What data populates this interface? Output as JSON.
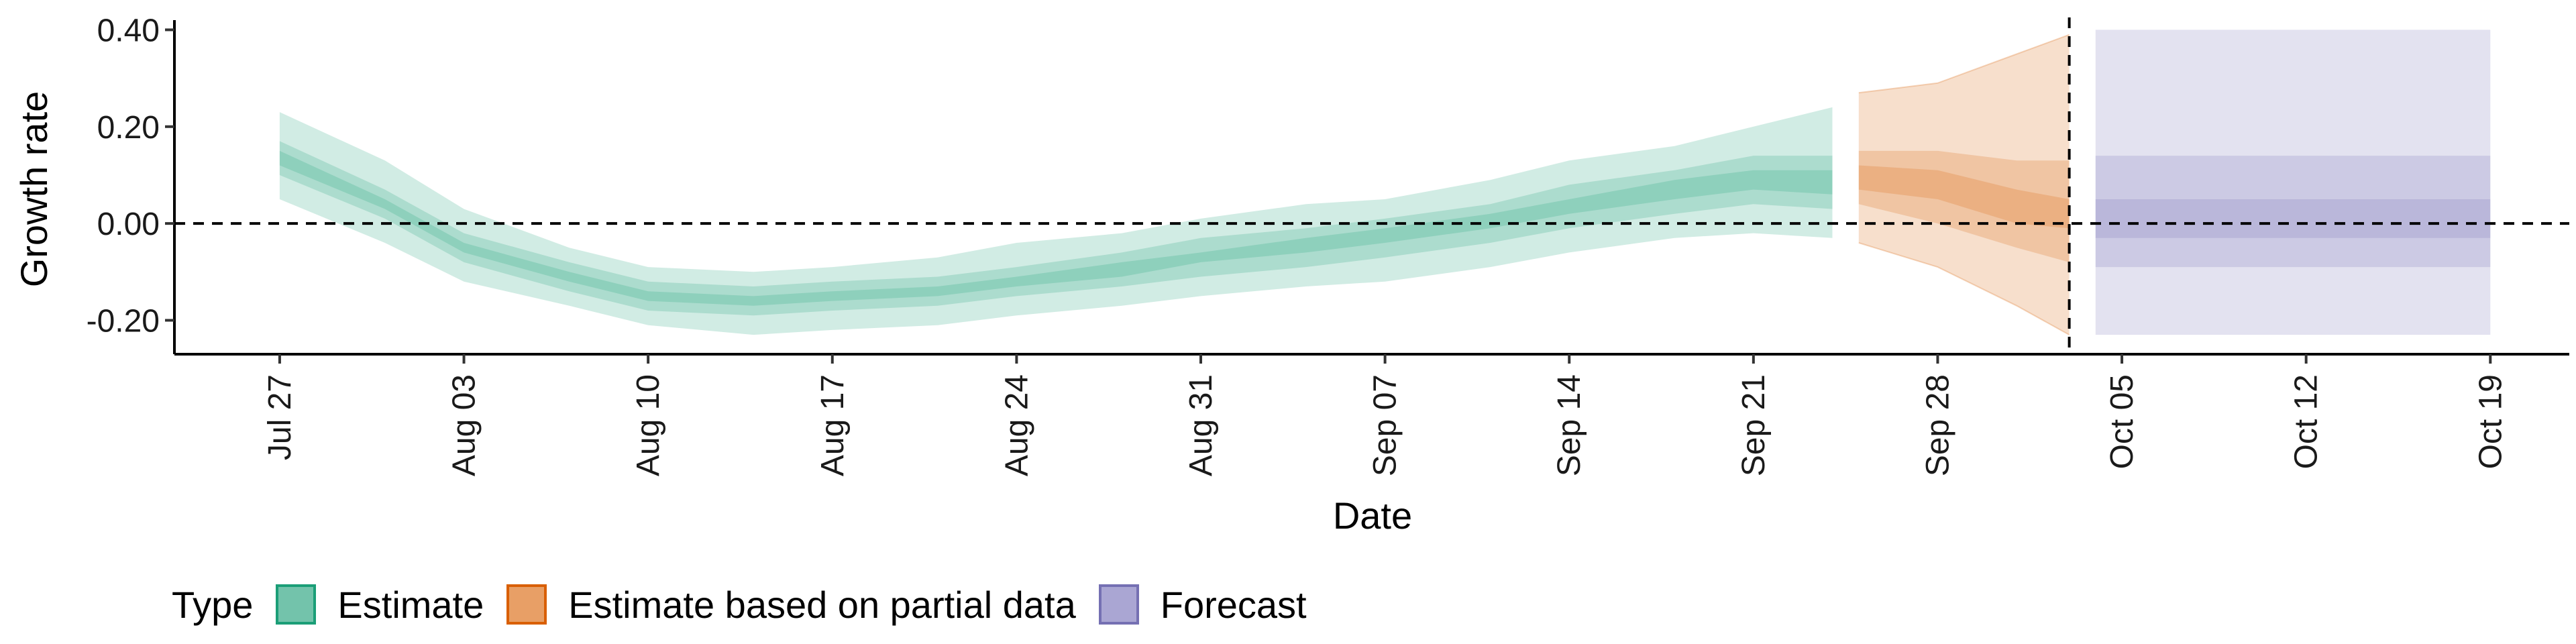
{
  "chart_data": {
    "type": "area",
    "title": "",
    "xlabel": "Date",
    "ylabel": "Growth rate",
    "x_ticks": [
      "Jul 27",
      "Aug 03",
      "Aug 10",
      "Aug 17",
      "Aug 24",
      "Aug 31",
      "Sep 07",
      "Sep 14",
      "Sep 21",
      "Sep 28",
      "Oct 05",
      "Oct 12",
      "Oct 19"
    ],
    "x_tick_dates": [
      "2020-07-27",
      "2020-08-03",
      "2020-08-10",
      "2020-08-17",
      "2020-08-24",
      "2020-08-31",
      "2020-09-07",
      "2020-09-14",
      "2020-09-21",
      "2020-09-28",
      "2020-10-05",
      "2020-10-12",
      "2020-10-19"
    ],
    "xlim": [
      "2020-07-23",
      "2020-10-22"
    ],
    "ylim": [
      -0.27,
      0.42
    ],
    "y_ticks": [
      -0.2,
      0.0,
      0.2,
      0.4
    ],
    "y_tick_labels": [
      "-0.20",
      "0.00",
      "0.20",
      "0.40"
    ],
    "reference_lines": {
      "horizontal_y": 0.0,
      "vertical_date": "2020-10-03",
      "style": "dashed"
    },
    "grid": false,
    "legend": {
      "title": "Type",
      "placement": "bottom-left",
      "items": [
        {
          "label": "Estimate",
          "color": "#1B9E77"
        },
        {
          "label": "Estimate based on partial data",
          "color": "#D95F02"
        },
        {
          "label": "Forecast",
          "color": "#7570B3"
        }
      ]
    },
    "series": [
      {
        "name": "Estimate",
        "color": "#1B9E77",
        "x": [
          "2020-07-27",
          "2020-07-31",
          "2020-08-03",
          "2020-08-07",
          "2020-08-10",
          "2020-08-14",
          "2020-08-17",
          "2020-08-21",
          "2020-08-24",
          "2020-08-28",
          "2020-08-31",
          "2020-09-04",
          "2020-09-07",
          "2020-09-11",
          "2020-09-14",
          "2020-09-18",
          "2020-09-21",
          "2020-09-24"
        ],
        "median": [
          0.13,
          0.04,
          -0.05,
          -0.11,
          -0.15,
          -0.16,
          -0.15,
          -0.14,
          -0.12,
          -0.09,
          -0.07,
          -0.05,
          -0.03,
          0.0,
          0.03,
          0.07,
          0.09,
          0.09
        ],
        "lower_outer": [
          0.05,
          -0.04,
          -0.12,
          -0.17,
          -0.21,
          -0.23,
          -0.22,
          -0.21,
          -0.19,
          -0.17,
          -0.15,
          -0.13,
          -0.12,
          -0.09,
          -0.06,
          -0.03,
          -0.02,
          -0.03
        ],
        "upper_outer": [
          0.23,
          0.13,
          0.03,
          -0.05,
          -0.09,
          -0.1,
          -0.09,
          -0.07,
          -0.04,
          -0.02,
          0.01,
          0.04,
          0.05,
          0.09,
          0.13,
          0.16,
          0.2,
          0.24
        ],
        "lower_mid": [
          0.1,
          0.01,
          -0.08,
          -0.14,
          -0.18,
          -0.19,
          -0.18,
          -0.17,
          -0.15,
          -0.13,
          -0.11,
          -0.09,
          -0.07,
          -0.04,
          -0.01,
          0.02,
          0.04,
          0.03
        ],
        "upper_mid": [
          0.17,
          0.07,
          -0.02,
          -0.08,
          -0.12,
          -0.13,
          -0.12,
          -0.11,
          -0.09,
          -0.06,
          -0.03,
          -0.01,
          0.01,
          0.04,
          0.08,
          0.11,
          0.14,
          0.14
        ],
        "lower_inner": [
          0.12,
          0.03,
          -0.06,
          -0.12,
          -0.16,
          -0.17,
          -0.16,
          -0.15,
          -0.13,
          -0.11,
          -0.08,
          -0.06,
          -0.04,
          -0.01,
          0.02,
          0.05,
          0.07,
          0.06
        ],
        "upper_inner": [
          0.15,
          0.05,
          -0.04,
          -0.1,
          -0.14,
          -0.15,
          -0.14,
          -0.13,
          -0.11,
          -0.08,
          -0.06,
          -0.03,
          -0.01,
          0.02,
          0.05,
          0.09,
          0.11,
          0.11
        ]
      },
      {
        "name": "Estimate based on partial data",
        "color": "#D95F02",
        "x": [
          "2020-09-25",
          "2020-09-28",
          "2020-10-01",
          "2020-10-03"
        ],
        "median": [
          0.09,
          0.07,
          0.03,
          0.01
        ],
        "lower_outer": [
          -0.04,
          -0.09,
          -0.17,
          -0.23
        ],
        "upper_outer": [
          0.27,
          0.29,
          0.35,
          0.39
        ],
        "lower_mid": [
          0.04,
          0.0,
          -0.05,
          -0.08
        ],
        "upper_mid": [
          0.15,
          0.15,
          0.13,
          0.13
        ],
        "lower_inner": [
          0.07,
          0.05,
          0.0,
          -0.01
        ],
        "upper_inner": [
          0.12,
          0.11,
          0.07,
          0.05
        ]
      },
      {
        "name": "Forecast",
        "color": "#7570B3",
        "x": [
          "2020-10-04",
          "2020-10-18"
        ],
        "median": [
          0.01,
          0.01
        ],
        "lower_outer": [
          -0.23,
          -0.23
        ],
        "upper_outer": [
          0.4,
          0.4
        ],
        "lower_mid": [
          -0.09,
          -0.09
        ],
        "upper_mid": [
          0.14,
          0.14
        ],
        "lower_inner": [
          -0.03,
          -0.03
        ],
        "upper_inner": [
          0.05,
          0.05
        ]
      }
    ]
  }
}
